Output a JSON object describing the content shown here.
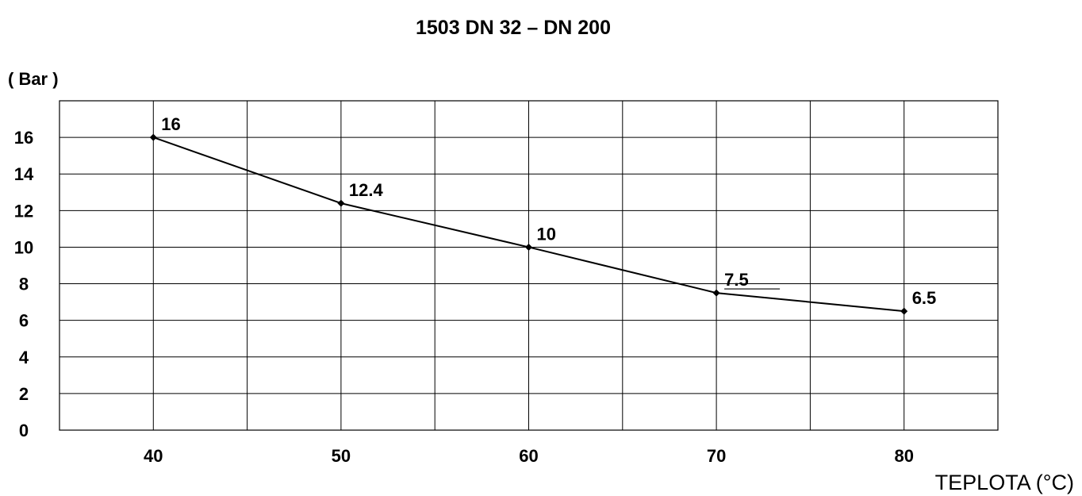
{
  "chart_data": {
    "type": "line",
    "title": "1503 DN 32 – DN 200",
    "ylabel": "( Bar )",
    "xlabel": "TEPLOTA (°C)",
    "x": [
      40,
      50,
      60,
      70,
      80
    ],
    "x_ticks": [
      40,
      50,
      60,
      70,
      80
    ],
    "y_ticks": [
      0,
      2,
      4,
      6,
      8,
      10,
      12,
      14,
      16
    ],
    "xlim": [
      35,
      85
    ],
    "ylim": [
      0,
      18
    ],
    "grid": true,
    "series": [
      {
        "values": [
          16,
          12.4,
          10,
          7.5,
          6.5
        ],
        "labels": [
          "16",
          "12.4",
          "10",
          "7.5",
          "6.5"
        ]
      }
    ]
  }
}
